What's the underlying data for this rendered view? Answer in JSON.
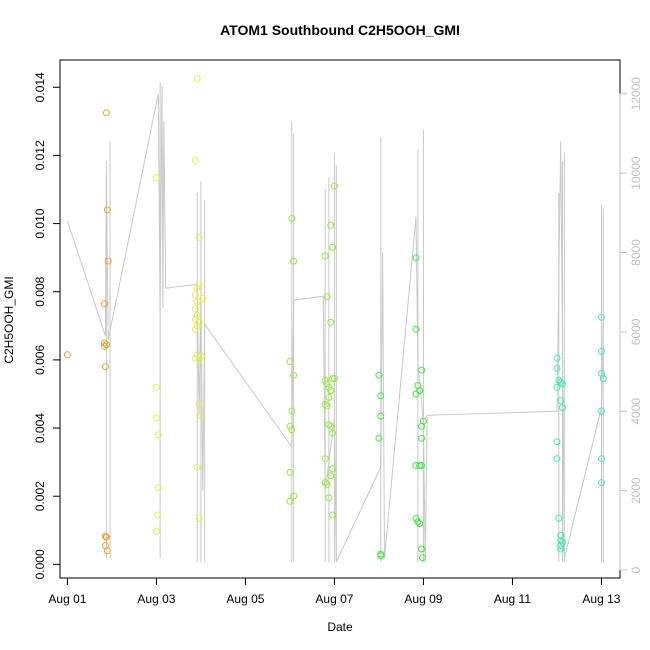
{
  "chart_data": {
    "type": "scatter",
    "title": "ATOM1 Southbound C2H5OOH_GMI",
    "xlabel": "Date",
    "ylabel": "C2H5OOH_GMI",
    "xlim": [
      "2016-07-31T20:00",
      "2016-08-13T10:00"
    ],
    "ylim": [
      -0.0004,
      0.0148
    ],
    "y2lim": [
      -200,
      12850
    ],
    "x_ticks": [
      "Aug 01",
      "Aug 03",
      "Aug 05",
      "Aug 07",
      "Aug 09",
      "Aug 11",
      "Aug 13"
    ],
    "x_tick_values": [
      "2016-08-01T00:00",
      "2016-08-03T00:00",
      "2016-08-05T00:00",
      "2016-08-07T00:00",
      "2016-08-09T00:00",
      "2016-08-11T00:00",
      "2016-08-13T00:00"
    ],
    "y_ticks": [
      "0.000",
      "0.002",
      "0.004",
      "0.006",
      "0.008",
      "0.010",
      "0.012",
      "0.014"
    ],
    "y_tick_values": [
      0.0,
      0.002,
      0.004,
      0.006,
      0.008,
      0.01,
      0.012,
      0.014
    ],
    "y2_ticks": [
      "0",
      "2000",
      "4000",
      "6000",
      "8000",
      "10000",
      "12000"
    ],
    "y2_tick_values": [
      0,
      2000,
      4000,
      6000,
      8000,
      10000,
      12000
    ],
    "grid": false,
    "legend": "none",
    "colors": {
      "altitude_trace": "#c8c8c8",
      "axis": "#000000",
      "right_axis": "#c0c0c0"
    },
    "altitude_trace": {
      "points": [
        [
          "2016-08-01T00:00",
          8800
        ],
        [
          "2016-08-01T20:30",
          5900
        ],
        [
          "2016-08-01T21:00",
          10000
        ],
        [
          "2016-08-01T22:00",
          5800
        ],
        [
          "2016-08-03T01:00",
          12000
        ],
        [
          "2016-08-03T02:00",
          6500
        ],
        [
          "2016-08-03T03:00",
          12200
        ],
        [
          "2016-08-03T03:30",
          6600
        ],
        [
          "2016-08-03T04:00",
          11300
        ],
        [
          "2016-08-03T05:00",
          7100
        ],
        [
          "2016-08-03T22:00",
          7200
        ],
        [
          "2016-08-03T23:00",
          3900
        ],
        [
          "2016-08-04T00:00",
          7000
        ],
        [
          "2016-08-04T01:00",
          2000
        ],
        [
          "2016-08-04T02:00",
          6200
        ],
        [
          "2016-08-06T01:00",
          3100
        ],
        [
          "2016-08-06T02:00",
          6800
        ],
        [
          "2016-08-06T18:00",
          6900
        ],
        [
          "2016-08-06T19:00",
          2000
        ],
        [
          "2016-08-07T00:00",
          3800
        ],
        [
          "2016-08-07T01:00",
          200
        ],
        [
          "2016-08-08T01:00",
          2600
        ],
        [
          "2016-08-08T02:00",
          8000
        ],
        [
          "2016-08-08T03:00",
          300
        ],
        [
          "2016-08-08T20:00",
          8900
        ],
        [
          "2016-08-08T21:00",
          5200
        ],
        [
          "2016-08-09T00:00",
          3700
        ],
        [
          "2016-08-09T01:00",
          200
        ],
        [
          "2016-08-09T02:00",
          3900
        ],
        [
          "2016-08-12T00:00",
          4000
        ],
        [
          "2016-08-12T02:00",
          10800
        ],
        [
          "2016-08-12T04:00",
          300
        ],
        [
          "2016-08-13T00:00",
          4100
        ],
        [
          "2016-08-13T01:00",
          6200
        ]
      ],
      "spikes": [
        [
          "2016-08-01T21:00",
          300,
          10300
        ],
        [
          "2016-08-01T23:00",
          300,
          10800
        ],
        [
          "2016-08-03T02:00",
          300,
          12300
        ],
        [
          "2016-08-03T22:00",
          200,
          9500
        ],
        [
          "2016-08-04T00:00",
          200,
          9800
        ],
        [
          "2016-08-04T02:00",
          200,
          9300
        ],
        [
          "2016-08-06T01:00",
          200,
          11300
        ],
        [
          "2016-08-06T02:00",
          200,
          11000
        ],
        [
          "2016-08-06T19:00",
          200,
          9600
        ],
        [
          "2016-08-06T21:00",
          200,
          9900
        ],
        [
          "2016-08-07T00:00",
          200,
          10500
        ],
        [
          "2016-08-07T01:00",
          200,
          10200
        ],
        [
          "2016-08-08T01:00",
          200,
          10900
        ],
        [
          "2016-08-08T21:00",
          200,
          10600
        ],
        [
          "2016-08-09T00:00",
          200,
          11100
        ],
        [
          "2016-08-12T01:00",
          200,
          9500
        ],
        [
          "2016-08-12T03:00",
          200,
          10300
        ],
        [
          "2016-08-12T04:00",
          200,
          10500
        ],
        [
          "2016-08-13T00:00",
          200,
          9200
        ],
        [
          "2016-08-13T01:00",
          200,
          9100
        ]
      ]
    },
    "series": [
      {
        "color": "#f0a030",
        "points": [
          [
            "2016-08-01T00:00",
            0.00615
          ],
          [
            "2016-08-01T20:00",
            0.00765
          ],
          [
            "2016-08-01T20:00",
            0.0065
          ],
          [
            "2016-08-01T20:00",
            0.0064
          ],
          [
            "2016-08-01T20:30",
            0.0058
          ],
          [
            "2016-08-01T21:00",
            0.01325
          ],
          [
            "2016-08-01T21:30",
            0.0104
          ],
          [
            "2016-08-01T22:00",
            0.0089
          ],
          [
            "2016-08-01T21:00",
            0.00645
          ],
          [
            "2016-08-01T20:30",
            0.00083
          ],
          [
            "2016-08-01T21:00",
            0.0008
          ],
          [
            "2016-08-01T20:30",
            0.00055
          ],
          [
            "2016-08-01T21:30",
            0.0004
          ]
        ]
      },
      {
        "color": "#e6ee50",
        "points": [
          [
            "2016-08-03T00:00",
            0.01135
          ],
          [
            "2016-08-03T00:00",
            0.0052
          ],
          [
            "2016-08-03T00:00",
            0.0043
          ],
          [
            "2016-08-03T01:00",
            0.0038
          ],
          [
            "2016-08-03T01:00",
            0.00225
          ],
          [
            "2016-08-03T00:30",
            0.00145
          ],
          [
            "2016-08-03T00:00",
            0.00098
          ],
          [
            "2016-08-03T22:00",
            0.01425
          ],
          [
            "2016-08-03T21:00",
            0.01185
          ],
          [
            "2016-08-03T23:00",
            0.0096
          ],
          [
            "2016-08-03T22:00",
            0.0081
          ],
          [
            "2016-08-03T23:00",
            0.0082
          ],
          [
            "2016-08-04T01:00",
            0.0078
          ],
          [
            "2016-08-03T21:00",
            0.0079
          ],
          [
            "2016-08-03T22:00",
            0.0077
          ],
          [
            "2016-08-03T21:00",
            0.0075
          ],
          [
            "2016-08-03T22:00",
            0.0073
          ],
          [
            "2016-08-03T21:00",
            0.0072
          ],
          [
            "2016-08-03T23:00",
            0.0071
          ],
          [
            "2016-08-03T22:00",
            0.007
          ],
          [
            "2016-08-03T21:00",
            0.0069
          ],
          [
            "2016-08-03T22:00",
            0.00615
          ],
          [
            "2016-08-03T21:00",
            0.00605
          ],
          [
            "2016-08-03T23:00",
            0.006
          ],
          [
            "2016-08-04T00:00",
            0.0061
          ],
          [
            "2016-08-03T23:00",
            0.0047
          ],
          [
            "2016-08-04T00:00",
            0.00435
          ],
          [
            "2016-08-03T22:00",
            0.00285
          ],
          [
            "2016-08-03T23:00",
            0.00135
          ]
        ]
      },
      {
        "color": "#90ec40",
        "points": [
          [
            "2016-08-06T01:00",
            0.01015
          ],
          [
            "2016-08-06T02:00",
            0.0089
          ],
          [
            "2016-08-06T00:00",
            0.00595
          ],
          [
            "2016-08-06T02:00",
            0.00555
          ],
          [
            "2016-08-06T01:00",
            0.0045
          ],
          [
            "2016-08-06T00:00",
            0.00405
          ],
          [
            "2016-08-06T01:00",
            0.00395
          ],
          [
            "2016-08-06T00:00",
            0.0027
          ],
          [
            "2016-08-06T02:00",
            0.002
          ],
          [
            "2016-08-06T00:00",
            0.00185
          ],
          [
            "2016-08-06T19:00",
            0.00905
          ],
          [
            "2016-08-06T20:00",
            0.00785
          ],
          [
            "2016-08-06T22:00",
            0.0071
          ],
          [
            "2016-08-07T00:00",
            0.0111
          ],
          [
            "2016-08-06T22:00",
            0.00995
          ],
          [
            "2016-08-06T23:00",
            0.0093
          ],
          [
            "2016-08-06T19:00",
            0.0054
          ],
          [
            "2016-08-06T20:00",
            0.0053
          ],
          [
            "2016-08-06T21:00",
            0.0052
          ],
          [
            "2016-08-06T22:00",
            0.0051
          ],
          [
            "2016-08-06T23:00",
            0.00545
          ],
          [
            "2016-08-07T00:00",
            0.00545
          ],
          [
            "2016-08-06T21:00",
            0.0049
          ],
          [
            "2016-08-06T19:00",
            0.0047
          ],
          [
            "2016-08-06T20:00",
            0.00465
          ],
          [
            "2016-08-06T21:00",
            0.0041
          ],
          [
            "2016-08-06T22:00",
            0.00405
          ],
          [
            "2016-08-06T23:00",
            0.00385
          ],
          [
            "2016-08-06T19:00",
            0.0031
          ],
          [
            "2016-08-06T23:00",
            0.0028
          ],
          [
            "2016-08-06T22:00",
            0.0026
          ],
          [
            "2016-08-06T19:00",
            0.0024
          ],
          [
            "2016-08-06T20:00",
            0.00235
          ],
          [
            "2016-08-06T21:00",
            0.00195
          ],
          [
            "2016-08-06T23:00",
            0.00145
          ]
        ]
      },
      {
        "color": "#40e840",
        "points": [
          [
            "2016-08-08T00:00",
            0.00555
          ],
          [
            "2016-08-08T01:00",
            0.00495
          ],
          [
            "2016-08-08T01:00",
            0.00435
          ],
          [
            "2016-08-08T00:00",
            0.0037
          ],
          [
            "2016-08-08T01:00",
            0.0003
          ],
          [
            "2016-08-08T01:00",
            0.00025
          ],
          [
            "2016-08-08T20:00",
            0.009
          ],
          [
            "2016-08-08T20:00",
            0.0069
          ],
          [
            "2016-08-08T23:00",
            0.0057
          ],
          [
            "2016-08-08T21:00",
            0.00525
          ],
          [
            "2016-08-08T22:00",
            0.0051
          ],
          [
            "2016-08-08T20:00",
            0.005
          ],
          [
            "2016-08-09T00:00",
            0.0042
          ],
          [
            "2016-08-08T23:00",
            0.00405
          ],
          [
            "2016-08-08T23:00",
            0.0037
          ],
          [
            "2016-08-08T20:00",
            0.0029
          ],
          [
            "2016-08-08T22:00",
            0.0029
          ],
          [
            "2016-08-08T23:00",
            0.0029
          ],
          [
            "2016-08-08T20:00",
            0.00135
          ],
          [
            "2016-08-08T21:00",
            0.00125
          ],
          [
            "2016-08-08T22:00",
            0.0012
          ],
          [
            "2016-08-08T23:00",
            0.00045
          ],
          [
            "2016-08-08T23:30",
            0.0002
          ]
        ]
      },
      {
        "color": "#40ecb0",
        "points": [
          [
            "2016-08-12T00:00",
            0.00605
          ],
          [
            "2016-08-12T00:00",
            0.00575
          ],
          [
            "2016-08-12T01:00",
            0.0054
          ],
          [
            "2016-08-12T02:00",
            0.00535
          ],
          [
            "2016-08-12T03:00",
            0.0053
          ],
          [
            "2016-08-12T00:00",
            0.0052
          ],
          [
            "2016-08-12T02:00",
            0.0048
          ],
          [
            "2016-08-12T03:00",
            0.0046
          ],
          [
            "2016-08-12T00:00",
            0.0036
          ],
          [
            "2016-08-12T00:00",
            0.0031
          ],
          [
            "2016-08-12T01:00",
            0.00135
          ],
          [
            "2016-08-12T02:00",
            0.00085
          ],
          [
            "2016-08-12T02:00",
            0.0007
          ],
          [
            "2016-08-12T03:00",
            0.00065
          ],
          [
            "2016-08-12T02:00",
            0.00055
          ],
          [
            "2016-08-12T02:00",
            0.00045
          ],
          [
            "2016-08-13T00:00",
            0.00725
          ],
          [
            "2016-08-13T00:00",
            0.00625
          ],
          [
            "2016-08-13T00:00",
            0.0056
          ],
          [
            "2016-08-13T01:00",
            0.00545
          ],
          [
            "2016-08-13T00:00",
            0.0045
          ],
          [
            "2016-08-13T00:00",
            0.0031
          ],
          [
            "2016-08-13T00:00",
            0.0024
          ]
        ]
      }
    ]
  }
}
